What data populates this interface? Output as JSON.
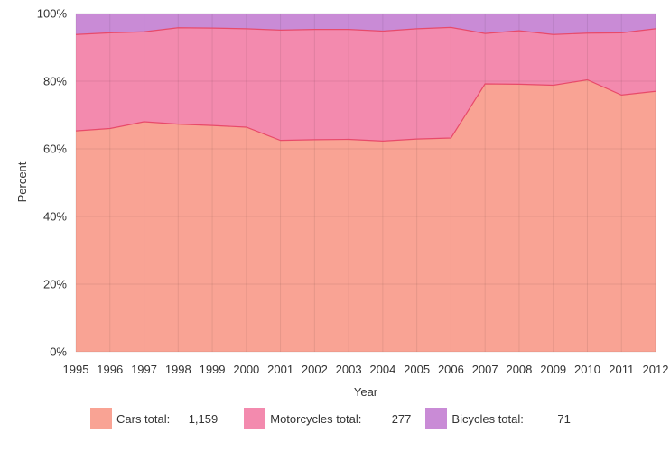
{
  "chart_data": {
    "type": "area",
    "stacked": true,
    "normalized_percent": true,
    "xlabel": "Year",
    "ylabel": "Percent",
    "ylim": [
      0,
      100
    ],
    "yticks": [
      "0%",
      "20%",
      "40%",
      "60%",
      "80%",
      "100%"
    ],
    "x": [
      "1995",
      "1996",
      "1997",
      "1998",
      "1999",
      "2000",
      "2001",
      "2002",
      "2003",
      "2004",
      "2005",
      "2006",
      "2007",
      "2008",
      "2009",
      "2010",
      "2011",
      "2012"
    ],
    "grid": true,
    "legend_position": "bottom",
    "series": [
      {
        "name": "Cars total:",
        "total": "1,159",
        "color": "#f9a394",
        "line_color": "#e84a6a",
        "values": [
          65.3,
          66.0,
          68.0,
          67.3,
          66.9,
          66.4,
          62.5,
          62.7,
          62.8,
          62.3,
          62.9,
          63.2,
          79.2,
          79.1,
          78.8,
          80.4,
          75.9,
          77.0
        ]
      },
      {
        "name": "Motorcycles total:",
        "total": "277",
        "color": "#f38aae",
        "line_color": "#e84a6a",
        "values": [
          28.5,
          28.3,
          26.6,
          28.5,
          28.8,
          29.1,
          32.6,
          32.6,
          32.5,
          32.5,
          32.6,
          32.7,
          14.9,
          15.8,
          15.0,
          13.8,
          18.4,
          18.5
        ]
      },
      {
        "name": "Bicycles total:",
        "total": "71",
        "color": "#c98bd6",
        "line_color": "#c98bd6",
        "values": [
          6.2,
          5.7,
          5.4,
          4.2,
          4.3,
          4.5,
          4.9,
          4.7,
          4.7,
          5.2,
          4.5,
          4.1,
          5.9,
          5.1,
          6.2,
          5.8,
          5.7,
          4.5
        ]
      }
    ]
  }
}
